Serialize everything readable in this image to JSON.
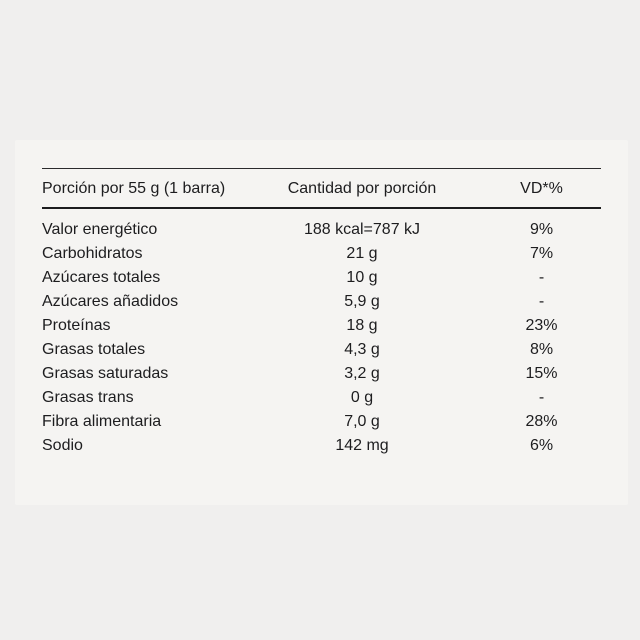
{
  "page": {
    "kind": "nutrition-facts-table",
    "language": "es"
  },
  "colors": {
    "page_background": "#f0efee",
    "card_background": "#f5f4f2",
    "text": "#1d1d1f",
    "rule_thin": "#2a2a2c",
    "rule_thick": "#1c1c1e"
  },
  "table": {
    "headers": {
      "serving": "Porción por 55 g (1 barra)",
      "amount": "Cantidad por porción",
      "daily_value": "VD*%"
    },
    "rows": [
      {
        "nutrient": "Valor energético",
        "amount": "188 kcal=787 kJ",
        "dv": "9%"
      },
      {
        "nutrient": "Carbohidratos",
        "amount": "21 g",
        "dv": "7%"
      },
      {
        "nutrient": "Azúcares totales",
        "amount": "10 g",
        "dv": "-"
      },
      {
        "nutrient": "Azúcares añadidos",
        "amount": "5,9 g",
        "dv": "-"
      },
      {
        "nutrient": "Proteínas",
        "amount": "18 g",
        "dv": "23%"
      },
      {
        "nutrient": "Grasas totales",
        "amount": "4,3 g",
        "dv": "8%"
      },
      {
        "nutrient": "Grasas saturadas",
        "amount": "3,2 g",
        "dv": "15%"
      },
      {
        "nutrient": "Grasas trans",
        "amount": "0 g",
        "dv": "-"
      },
      {
        "nutrient": "Fibra alimentaria",
        "amount": "7,0 g",
        "dv": "28%"
      },
      {
        "nutrient": "Sodio",
        "amount": "142 mg",
        "dv": "6%"
      }
    ]
  }
}
